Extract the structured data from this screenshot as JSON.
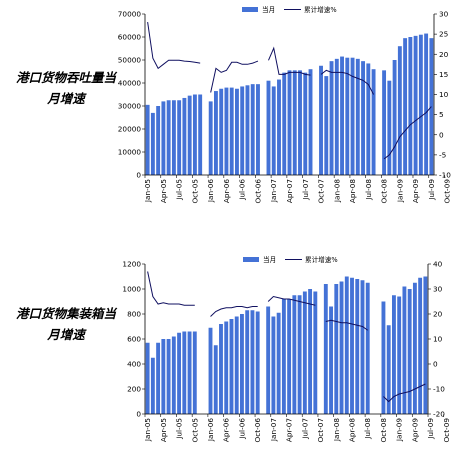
{
  "side_titles": [
    [
      "港口货物吞吐量当",
      "月增速"
    ],
    [
      "港口货物集装箱当",
      "月增速"
    ]
  ],
  "colors": {
    "bar": "#4472d6",
    "line": "#101060",
    "axis": "#000000"
  },
  "chart_data": [
    {
      "type": "bar",
      "legend_placement": "top",
      "grid": false,
      "x_tick_labels": [
        "Jan-05",
        "Apr-05",
        "Jul-05",
        "Oct-05",
        "Jan-06",
        "Apr-06",
        "Jul-06",
        "Oct-06",
        "Jan-07",
        "Apr-07",
        "Jul-07",
        "Oct-07",
        "Jan-08",
        "Apr-08",
        "Jul-08",
        "Oct-08",
        "Jan-09",
        "Apr-09",
        "Jul-09",
        "Oct-09"
      ],
      "left_axis": {
        "ylim": [
          0,
          70000
        ],
        "ticks": [
          0,
          10000,
          20000,
          30000,
          40000,
          50000,
          60000,
          70000
        ]
      },
      "right_axis": {
        "ylim": [
          -10,
          30
        ],
        "ticks": [
          -10,
          -5,
          0,
          5,
          10,
          15,
          20,
          25,
          30
        ]
      },
      "series": [
        {
          "name": "当月",
          "axis": "left",
          "kind": "bar",
          "values": [
            30500,
            27000,
            30000,
            32000,
            32500,
            32500,
            32500,
            33500,
            34500,
            35000,
            35000,
            null,
            32000,
            36500,
            37500,
            38000,
            38000,
            37500,
            38500,
            39000,
            39500,
            39500,
            null,
            41000,
            38500,
            41500,
            44500,
            45500,
            45500,
            45500,
            44500,
            46000,
            null,
            47500,
            43000,
            49500,
            50500,
            51500,
            51000,
            51000,
            50500,
            49500,
            48500,
            46000,
            null,
            45500,
            41000,
            50000,
            56000,
            59500,
            60000,
            60500,
            61000,
            61500,
            59500
          ]
        },
        {
          "name": "累计增速%",
          "axis": "right",
          "kind": "line",
          "values": [
            28,
            19,
            16.5,
            17.5,
            18.5,
            18.5,
            18.5,
            18.3,
            18.2,
            18,
            17.8,
            null,
            10.5,
            16.5,
            15.5,
            16,
            18,
            18,
            17.5,
            17.5,
            17.8,
            18.3,
            null,
            18.5,
            21.5,
            15,
            15,
            15.5,
            15.5,
            15.5,
            15,
            14.8,
            null,
            15,
            16,
            15.5,
            15.5,
            15.5,
            15.2,
            14.5,
            14,
            13.5,
            12.5,
            10,
            null,
            -6,
            -5,
            -3,
            -0.5,
            1,
            2.5,
            3.5,
            4.5,
            5.5,
            7
          ]
        }
      ]
    },
    {
      "type": "bar",
      "legend_placement": "top",
      "grid": false,
      "x_tick_labels": [
        "Jan-05",
        "Apr-05",
        "Jul-05",
        "Oct-05",
        "Jan-06",
        "Apr-06",
        "Jul-06",
        "Oct-06",
        "Jan-07",
        "Apr-07",
        "Jul-07",
        "Oct-07",
        "Jan-08",
        "Apr-08",
        "Jul-08",
        "Oct-08",
        "Jan-09",
        "Apr-09",
        "Jul-09",
        "Oct-09"
      ],
      "left_axis": {
        "ylim": [
          0,
          1200
        ],
        "ticks": [
          0,
          200,
          400,
          600,
          800,
          1000,
          1200
        ]
      },
      "right_axis": {
        "ylim": [
          -20,
          40
        ],
        "ticks": [
          -20,
          -10,
          0,
          10,
          20,
          30,
          40
        ]
      },
      "series": [
        {
          "name": "当月",
          "axis": "left",
          "kind": "bar",
          "values": [
            570,
            450,
            570,
            600,
            600,
            620,
            650,
            660,
            660,
            660,
            null,
            null,
            690,
            550,
            720,
            740,
            760,
            780,
            800,
            830,
            830,
            820,
            null,
            860,
            780,
            810,
            920,
            920,
            950,
            950,
            980,
            1000,
            980,
            null,
            1040,
            860,
            1040,
            1060,
            1100,
            1090,
            1080,
            1070,
            1050,
            null,
            null,
            900,
            710,
            950,
            940,
            1020,
            1000,
            1050,
            1090,
            1100
          ]
        },
        {
          "name": "累计增速%",
          "axis": "right",
          "kind": "line",
          "values": [
            37,
            27,
            24,
            24.5,
            24,
            24,
            24,
            23.5,
            23.5,
            23.5,
            null,
            null,
            19,
            21,
            22,
            22.5,
            22.5,
            23,
            23,
            22.5,
            23,
            23,
            null,
            25,
            27,
            26.5,
            26,
            26,
            25.5,
            25,
            24.5,
            24,
            23.5,
            null,
            17,
            17.5,
            17,
            16.5,
            16.5,
            16,
            15.5,
            15,
            13.5,
            null,
            null,
            -13,
            -15,
            -13,
            -12,
            -11.5,
            -11,
            -10,
            -9,
            -8
          ]
        }
      ]
    }
  ]
}
